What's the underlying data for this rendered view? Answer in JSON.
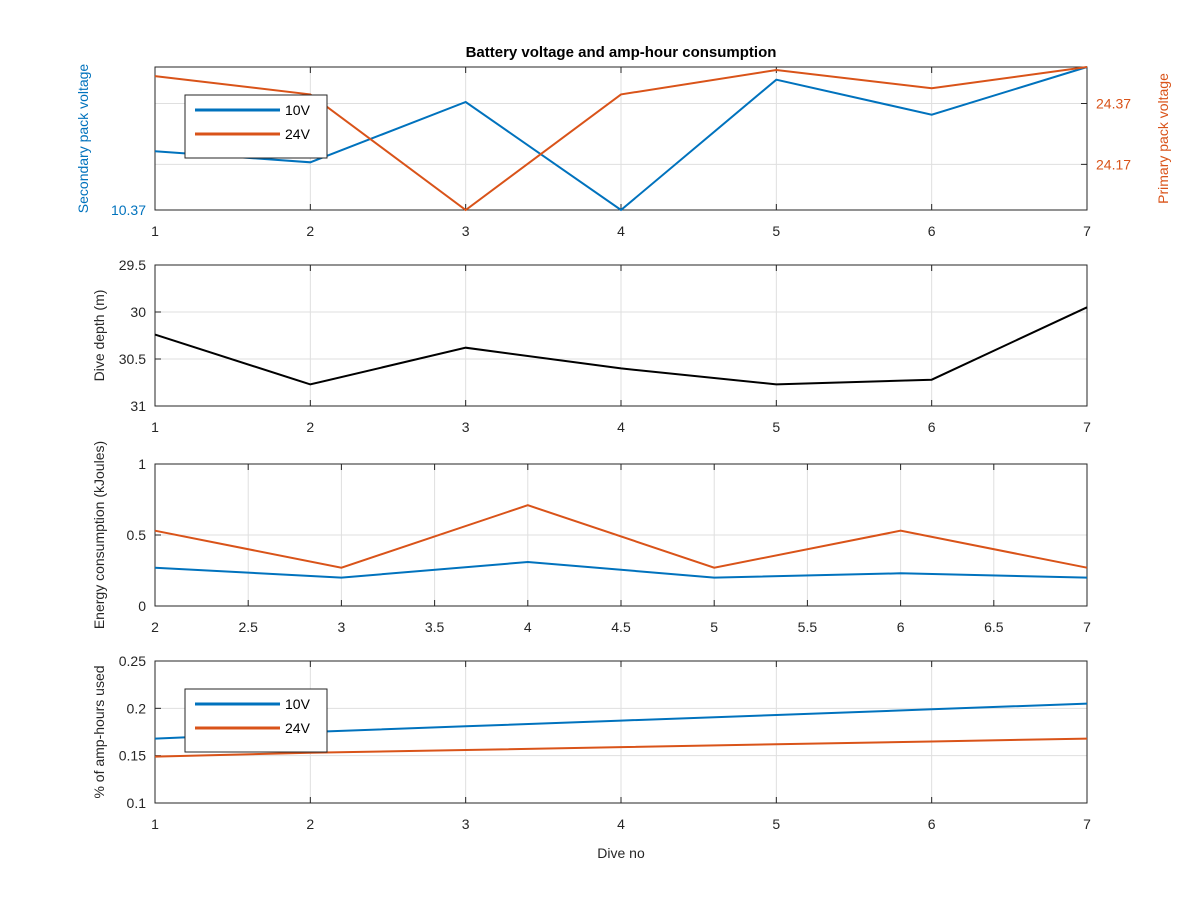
{
  "figure": {
    "colors": {
      "blue": "#0072BD",
      "orange": "#D95319",
      "black": "#000000"
    }
  },
  "chart_data": [
    {
      "type": "line",
      "title": "Battery voltage and amp-hour consumption",
      "ylabel": "Secondary pack voltage",
      "ylabel_right": "Primary pack voltage",
      "xlim": [
        1,
        7
      ],
      "xticks": [
        1,
        2,
        3,
        4,
        5,
        6,
        7
      ],
      "ylim_left": [
        10.37,
        10.46
      ],
      "yticks_left": [
        10.37
      ],
      "ylim_right": [
        24.02,
        24.49
      ],
      "yticks_right": [
        24.17,
        24.37
      ],
      "grid": true,
      "legend_position": "top-left",
      "series": [
        {
          "name": "10V",
          "axis": "left",
          "color": "#0072BD",
          "x": [
            1,
            2,
            3,
            4,
            5,
            6,
            7
          ],
          "values": [
            10.407,
            10.4,
            10.438,
            10.37,
            10.452,
            10.43,
            10.46
          ]
        },
        {
          "name": "24V",
          "axis": "right",
          "color": "#D95319",
          "x": [
            1,
            2,
            3,
            4,
            5,
            6,
            7
          ],
          "values": [
            24.46,
            24.4,
            24.02,
            24.4,
            24.48,
            24.42,
            24.49
          ]
        }
      ]
    },
    {
      "type": "line",
      "ylabel": "Dive depth (m)",
      "xlim": [
        1,
        7
      ],
      "xticks": [
        1,
        2,
        3,
        4,
        5,
        6,
        7
      ],
      "ylim": [
        29.5,
        31
      ],
      "yticks": [
        29.5,
        30,
        30.5,
        31
      ],
      "ytick_labels": [
        "29.5",
        "30",
        "30.5",
        "31"
      ],
      "y_reversed": true,
      "grid": true,
      "series": [
        {
          "color": "#000000",
          "x": [
            1,
            2,
            3,
            4,
            5,
            6,
            7
          ],
          "values": [
            30.24,
            30.77,
            30.38,
            30.6,
            30.77,
            30.72,
            29.95
          ]
        }
      ]
    },
    {
      "type": "line",
      "ylabel": "Energy consumption (kJoules)",
      "xlim": [
        2,
        7
      ],
      "xticks": [
        2,
        2.5,
        3,
        3.5,
        4,
        4.5,
        5,
        5.5,
        6,
        6.5,
        7
      ],
      "xtick_labels": [
        "2",
        "2.5",
        "3",
        "3.5",
        "4",
        "4.5",
        "5",
        "5.5",
        "6",
        "6.5",
        "7"
      ],
      "ylim": [
        0,
        1
      ],
      "yticks": [
        0,
        0.5,
        1
      ],
      "ytick_labels": [
        "0",
        "0.5",
        "1"
      ],
      "grid": true,
      "series": [
        {
          "color": "#0072BD",
          "x": [
            2,
            3,
            4,
            5,
            6,
            7
          ],
          "values": [
            0.27,
            0.2,
            0.31,
            0.2,
            0.23,
            0.2
          ]
        },
        {
          "color": "#D95319",
          "x": [
            2,
            3,
            4,
            5,
            6,
            7
          ],
          "values": [
            0.53,
            0.27,
            0.71,
            0.27,
            0.53,
            0.27
          ]
        }
      ]
    },
    {
      "type": "line",
      "ylabel": "% of amp-hours used",
      "xlabel": "Dive no",
      "xlim": [
        1,
        7
      ],
      "xticks": [
        1,
        2,
        3,
        4,
        5,
        6,
        7
      ],
      "ylim": [
        0.1,
        0.25
      ],
      "yticks": [
        0.1,
        0.15,
        0.2,
        0.25
      ],
      "ytick_labels": [
        "0.1",
        "0.15",
        "0.2",
        "0.25"
      ],
      "grid": true,
      "legend_position": "top-left",
      "series": [
        {
          "name": "10V",
          "color": "#0072BD",
          "x": [
            1,
            2,
            3,
            4,
            5,
            6,
            7
          ],
          "values": [
            0.168,
            0.175,
            0.181,
            0.187,
            0.193,
            0.199,
            0.205
          ]
        },
        {
          "name": "24V",
          "color": "#D95319",
          "x": [
            1,
            2,
            3,
            4,
            5,
            6,
            7
          ],
          "values": [
            0.149,
            0.153,
            0.156,
            0.159,
            0.162,
            0.165,
            0.168
          ]
        }
      ]
    }
  ]
}
